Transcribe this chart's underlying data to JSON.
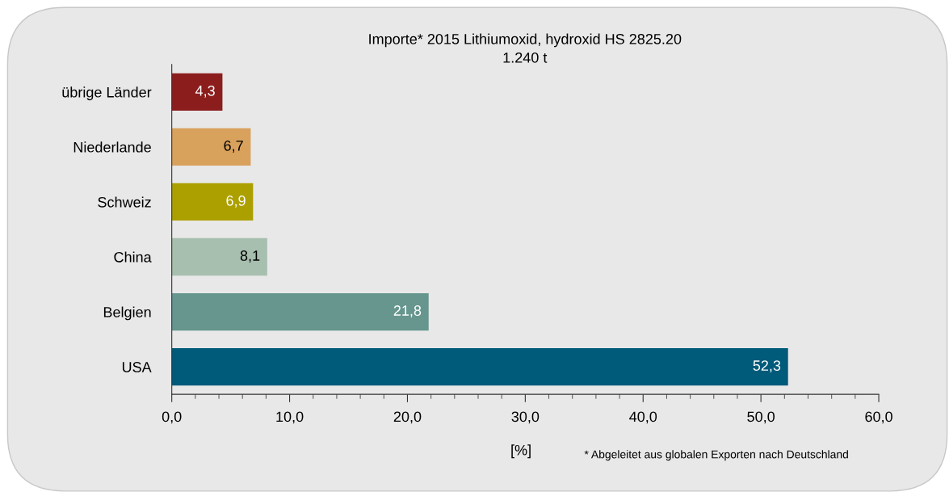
{
  "chart_data": {
    "type": "bar",
    "orientation": "horizontal",
    "title": "Importe* 2015 Lithiumoxid, hydroxid HS 2825.20",
    "subtitle": "1.240 t",
    "xlabel": "[%]",
    "annotations": [
      "* Abgeleitet aus globalen Exporten nach Deutschland"
    ],
    "categories": [
      "übrige Länder",
      "Niederlande",
      "Schweiz",
      "China",
      "Belgien",
      "USA"
    ],
    "values": [
      4.3,
      6.7,
      6.9,
      8.1,
      21.8,
      52.3
    ],
    "colors": [
      "#8c1d1d",
      "#d8a15c",
      "#aca000",
      "#a7bfae",
      "#66968e",
      "#005a7a"
    ],
    "value_labels": [
      "4,3",
      "6,7",
      "6,9",
      "8,1",
      "21,8",
      "52,3"
    ],
    "xlim": [
      0,
      60
    ],
    "xticks": [
      {
        "value": 0,
        "label": "0,0"
      },
      {
        "value": 10,
        "label": "10,0"
      },
      {
        "value": 20,
        "label": "20,0"
      },
      {
        "value": 30,
        "label": "30,0"
      },
      {
        "value": 40,
        "label": "40,0"
      },
      {
        "value": 50,
        "label": "50,0"
      },
      {
        "value": 60,
        "label": "60,0"
      }
    ],
    "grid": false,
    "legend": false
  }
}
